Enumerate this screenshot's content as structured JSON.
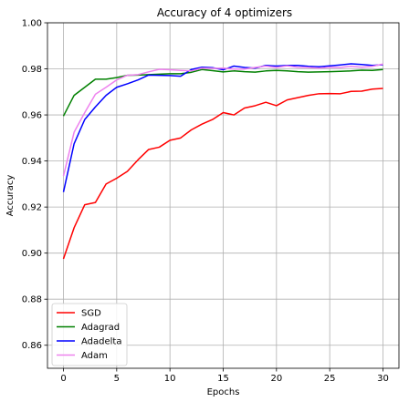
{
  "chart_data": {
    "type": "line",
    "title": "Accuracy of 4 optimizers",
    "xlabel": "Epochs",
    "ylabel": "Accuracy",
    "xlim": [
      -1.5,
      31.5
    ],
    "ylim": [
      0.85,
      1.0
    ],
    "xticks": [
      0,
      5,
      10,
      15,
      20,
      25,
      30
    ],
    "yticks": [
      0.86,
      0.88,
      0.9,
      0.92,
      0.94,
      0.96,
      0.98,
      1.0
    ],
    "ytick_labels": [
      "0.86",
      "0.88",
      "0.90",
      "0.92",
      "0.94",
      "0.96",
      "0.98",
      "1.00"
    ],
    "grid": true,
    "legend_position": "lower-left",
    "x": [
      0,
      1,
      2,
      3,
      4,
      5,
      6,
      7,
      8,
      9,
      10,
      11,
      12,
      13,
      14,
      15,
      16,
      17,
      18,
      19,
      20,
      21,
      22,
      23,
      24,
      25,
      26,
      27,
      28,
      29,
      30
    ],
    "series": [
      {
        "name": "SGD",
        "color": "#ff0000",
        "values": [
          0.8975,
          0.911,
          0.921,
          0.922,
          0.93,
          0.9325,
          0.9355,
          0.9405,
          0.945,
          0.946,
          0.949,
          0.95,
          0.9535,
          0.956,
          0.958,
          0.961,
          0.96,
          0.963,
          0.964,
          0.9655,
          0.964,
          0.9665,
          0.9675,
          0.9685,
          0.9692,
          0.9693,
          0.9692,
          0.9702,
          0.9703,
          0.9712,
          0.9715
        ]
      },
      {
        "name": "Adagrad",
        "color": "#008000",
        "values": [
          0.9595,
          0.9685,
          0.972,
          0.9755,
          0.9755,
          0.9762,
          0.9772,
          0.9773,
          0.9775,
          0.9777,
          0.9779,
          0.9779,
          0.9785,
          0.9797,
          0.9792,
          0.9787,
          0.9791,
          0.9788,
          0.9786,
          0.9791,
          0.9793,
          0.9791,
          0.9788,
          0.9786,
          0.9787,
          0.9788,
          0.9789,
          0.9791,
          0.9794,
          0.9793,
          0.9797
        ]
      },
      {
        "name": "Adadelta",
        "color": "#0000ff",
        "values": [
          0.9265,
          0.9475,
          0.958,
          0.9635,
          0.9685,
          0.972,
          0.9735,
          0.9752,
          0.9773,
          0.9772,
          0.9771,
          0.9768,
          0.9797,
          0.9807,
          0.9805,
          0.9796,
          0.9812,
          0.9806,
          0.9803,
          0.9815,
          0.9812,
          0.9815,
          0.9815,
          0.9811,
          0.9809,
          0.9813,
          0.9817,
          0.9822,
          0.9819,
          0.9815,
          0.9818
        ]
      },
      {
        "name": "Adam",
        "color": "#ee82ee",
        "values": [
          0.9335,
          0.9525,
          0.961,
          0.969,
          0.972,
          0.9752,
          0.9772,
          0.9775,
          0.9787,
          0.9798,
          0.9796,
          0.9793,
          0.9791,
          0.9803,
          0.9802,
          0.9803,
          0.9799,
          0.9799,
          0.9806,
          0.9812,
          0.9806,
          0.9813,
          0.9807,
          0.9806,
          0.9803,
          0.9807,
          0.9806,
          0.9811,
          0.9807,
          0.9811,
          0.9821
        ]
      }
    ]
  }
}
